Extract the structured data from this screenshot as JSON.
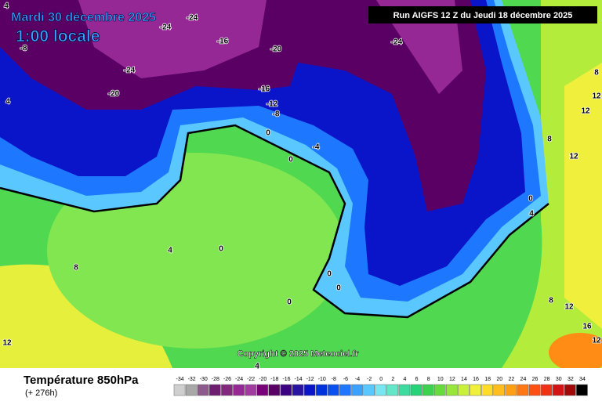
{
  "header": {
    "date": "Mardi 30 décembre 2025",
    "time": "1:00 locale",
    "run": "Run AIGFS 12 Z du Jeudi 18 décembre 2025"
  },
  "copyright": "Copyright © 2025 Meteociel.fr",
  "footer": {
    "title": "Température 850hPa",
    "lead": "(+ 276h)"
  },
  "contour_labels": [
    4,
    -8,
    -24,
    -24,
    -24,
    -16,
    -20,
    -24,
    -20,
    -16,
    -12,
    -8,
    4,
    0,
    -4,
    0,
    0,
    4,
    8,
    12,
    0,
    0,
    0,
    0,
    4,
    8,
    12,
    16,
    12,
    8,
    12,
    12,
    12,
    8,
    4
  ],
  "legend": {
    "values": [
      -34,
      -32,
      -30,
      -28,
      -26,
      -24,
      -22,
      -20,
      -18,
      -16,
      -14,
      -12,
      -10,
      -8,
      -6,
      -4,
      -2,
      0,
      2,
      4,
      6,
      8,
      10,
      12,
      14,
      16,
      18,
      20,
      22,
      24,
      26,
      28,
      30,
      32,
      34
    ],
    "colors": [
      "#cfcfcf",
      "#a8a8a8",
      "#8c5a8c",
      "#6e1e6e",
      "#82287d",
      "#962896",
      "#a03ca0",
      "#780078",
      "#5a0064",
      "#3c0082",
      "#2814a0",
      "#0a14c8",
      "#0032dc",
      "#0a50f0",
      "#1e78ff",
      "#3ca0ff",
      "#5ac8ff",
      "#78e6f0",
      "#64e6c8",
      "#3cdca0",
      "#28d278",
      "#3cd250",
      "#64dc3c",
      "#96e63c",
      "#c8f03c",
      "#f0f03c",
      "#ffdc28",
      "#ffbe1e",
      "#ffa014",
      "#ff7814",
      "#ff5014",
      "#f03214",
      "#d21414",
      "#a00a0a",
      "#000000"
    ]
  }
}
